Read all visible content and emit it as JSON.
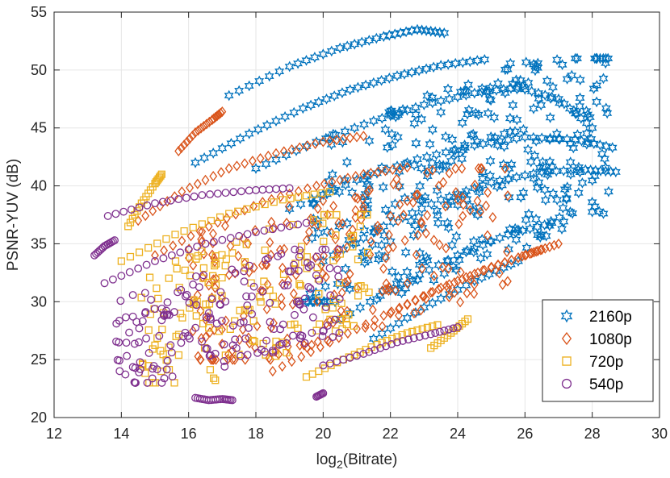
{
  "chart_data": {
    "type": "scatter",
    "title": "",
    "xlabel": "log2(Bitrate)",
    "xlabel_base": "log",
    "xlabel_sub": "2",
    "xlabel_rest": "(Bitrate)",
    "ylabel": "PSNR-YUV (dB)",
    "xlim": [
      12,
      30
    ],
    "ylim": [
      20,
      55
    ],
    "xticks": [
      12,
      14,
      16,
      18,
      20,
      22,
      24,
      26,
      28,
      30
    ],
    "yticks": [
      20,
      25,
      30,
      35,
      40,
      45,
      50,
      55
    ],
    "grid": true,
    "legend_position": "bottom-right",
    "series": [
      {
        "name": "2160p",
        "marker": "hexagram",
        "color": "#0072BD",
        "curves": [
          {
            "x": [
              17.2,
              19.0,
              20.5,
              21.8,
              22.8,
              23.6
            ],
            "y": [
              47.8,
              50.3,
              51.9,
              52.9,
              53.5,
              53.2
            ]
          },
          {
            "x": [
              16.2,
              17.8,
              19.4,
              20.8,
              22.2,
              23.5,
              24.8
            ],
            "y": [
              42.0,
              44.5,
              46.7,
              48.3,
              49.5,
              50.4,
              50.9
            ]
          },
          {
            "x": [
              18.0,
              19.8,
              21.5,
              23.0,
              24.5,
              25.8,
              27.0,
              28.0
            ],
            "y": [
              41.5,
              43.8,
              45.6,
              47.0,
              48.0,
              48.5,
              47.5,
              45.0
            ]
          },
          {
            "x": [
              19.0,
              21.0,
              22.8,
              24.5,
              26.0,
              27.5,
              28.6
            ],
            "y": [
              38.0,
              40.5,
              42.3,
              43.5,
              44.2,
              44.0,
              43.3
            ]
          },
          {
            "x": [
              20.0,
              21.8,
              23.5,
              25.0,
              26.5,
              27.8,
              28.7
            ],
            "y": [
              33.5,
              36.5,
              38.8,
              40.3,
              41.2,
              41.4,
              41.2
            ]
          },
          {
            "x": [
              20.5,
              22.3,
              24.0,
              25.5,
              26.8
            ],
            "y": [
              28.5,
              31.5,
              34.0,
              35.8,
              36.8
            ]
          },
          {
            "x": [
              21.5,
              23.0,
              24.5,
              25.8
            ],
            "y": [
              26.8,
              29.5,
              31.8,
              33.5
            ]
          }
        ],
        "cloud": {
          "x": [
            19.5,
            28.5
          ],
          "y": [
            30.0,
            51.0
          ],
          "count": 340,
          "seed": 11
        }
      },
      {
        "name": "1080p",
        "marker": "diamond",
        "color": "#D95319",
        "curves": [
          {
            "x": [
              15.7,
              16.2,
              16.7,
              17.0
            ],
            "y": [
              43.0,
              44.6,
              45.7,
              46.4
            ]
          },
          {
            "x": [
              14.5,
              15.8,
              17.2,
              18.6,
              20.0,
              21.2
            ],
            "y": [
              37.0,
              39.5,
              41.5,
              42.8,
              43.8,
              44.3
            ]
          },
          {
            "x": [
              15.0,
              16.6,
              18.2,
              19.8,
              21.2,
              22.5
            ],
            "y": [
              34.0,
              36.5,
              38.6,
              40.0,
              41.0,
              41.6
            ]
          },
          {
            "x": [
              18.5,
              20.2,
              21.8,
              23.2,
              24.6,
              25.8,
              26.5
            ],
            "y": [
              24.0,
              26.5,
              28.8,
              30.8,
              32.5,
              33.8,
              34.5
            ]
          },
          {
            "x": [
              22.0,
              23.5,
              25.0,
              26.2,
              27.0
            ],
            "y": [
              29.0,
              31.2,
              33.0,
              34.2,
              35.0
            ]
          }
        ],
        "cloud": {
          "x": [
            16.0,
            25.5
          ],
          "y": [
            25.0,
            41.5
          ],
          "count": 240,
          "seed": 23
        }
      },
      {
        "name": "720p",
        "marker": "square",
        "color": "#EDB120",
        "curves": [
          {
            "x": [
              14.2,
              14.6,
              15.0,
              15.2
            ],
            "y": [
              36.5,
              38.5,
              40.2,
              41.0
            ]
          },
          {
            "x": [
              14.0,
              15.6,
              17.2,
              18.8,
              20.2
            ],
            "y": [
              33.5,
              35.8,
              37.6,
              38.8,
              39.5
            ]
          },
          {
            "x": [
              19.5,
              20.6,
              21.6,
              22.5,
              23.4
            ],
            "y": [
              23.5,
              25.0,
              26.3,
              27.3,
              28.0
            ]
          },
          {
            "x": [
              23.2,
              23.8,
              24.3
            ],
            "y": [
              26.0,
              27.3,
              28.5
            ]
          }
        ],
        "cloud": {
          "x": [
            14.5,
            21.5
          ],
          "y": [
            23.0,
            37.5
          ],
          "count": 160,
          "seed": 37
        }
      },
      {
        "name": "540p",
        "marker": "circle",
        "color": "#7E2F8E",
        "curves": [
          {
            "x": [
              13.2,
              13.5,
              13.8
            ],
            "y": [
              34.0,
              34.8,
              35.3
            ]
          },
          {
            "x": [
              13.6,
              15.0,
              16.4,
              17.8,
              19.0
            ],
            "y": [
              37.4,
              38.5,
              39.2,
              39.6,
              39.8
            ]
          },
          {
            "x": [
              13.5,
              15.0,
              16.5,
              18.0,
              19.5
            ],
            "y": [
              31.6,
              33.5,
              35.0,
              36.0,
              36.8
            ]
          },
          {
            "x": [
              16.2,
              16.6,
              17.0,
              17.3
            ],
            "y": [
              21.7,
              21.5,
              21.6,
              21.5
            ]
          },
          {
            "x": [
              19.8,
              20.0
            ],
            "y": [
              21.8,
              22.1
            ]
          },
          {
            "x": [
              20.0,
              21.2,
              22.2,
              23.2,
              24.0
            ],
            "y": [
              24.5,
              25.5,
              26.5,
              27.2,
              27.8
            ]
          }
        ],
        "cloud": {
          "x": [
            13.8,
            20.5
          ],
          "y": [
            23.0,
            34.5
          ],
          "count": 180,
          "seed": 53
        }
      }
    ]
  }
}
